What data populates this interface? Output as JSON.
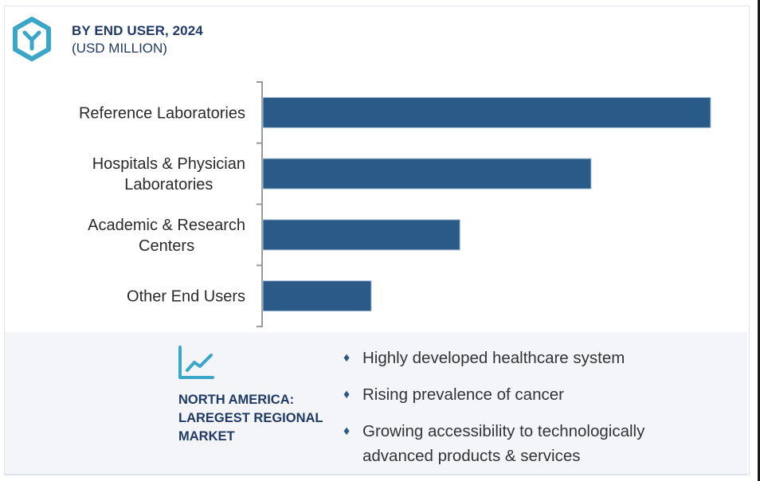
{
  "header": {
    "logo_icon": "hexagon-y-logo-icon",
    "title": "BY END USER, 2024",
    "subtitle": "(USD MILLION)"
  },
  "chart_data": {
    "type": "bar",
    "orientation": "horizontal",
    "title": "BY END USER, 2024",
    "subtitle": "(USD MILLION)",
    "xlabel": "",
    "ylabel": "",
    "categories": [
      "Reference Laboratories",
      "Hospitals & Physician Laboratories",
      "Academic & Research Centers",
      "Other End Users"
    ],
    "category_lines": [
      [
        "Reference Laboratories"
      ],
      [
        "Hospitals & Physician",
        "Laboratories"
      ],
      [
        "Academic & Research",
        "Centers"
      ],
      [
        "Other End Users"
      ]
    ],
    "values_relative": [
      1.0,
      0.733,
      0.44,
      0.242
    ],
    "value_axis_labels_shown": false,
    "grid": false,
    "legend": "none",
    "bar_color": "#2a5b88"
  },
  "panel": {
    "icon": "trend-line-chart-icon",
    "region_lines": [
      "NORTH AMERICA:",
      "LAREGEST REGIONAL",
      "MARKET"
    ],
    "bullet_icon": "diamond-bullet-icon",
    "bullets": [
      "Highly developed healthcare system",
      "Rising prevalence of cancer",
      "Growing accessibility to technologically advanced products & services"
    ]
  },
  "colors": {
    "title": "#1f3a64",
    "bar": "#2a5b88",
    "accent_icon": "#3aa6c8",
    "panel_bg": "#f3f5f9"
  }
}
